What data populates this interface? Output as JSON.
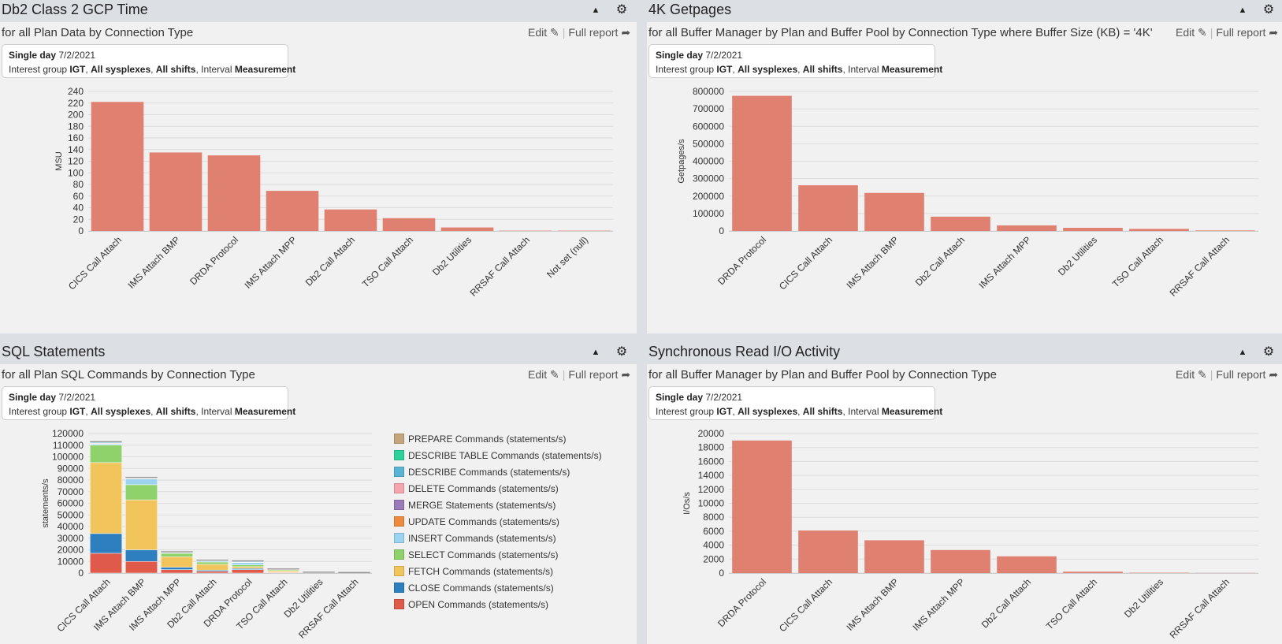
{
  "info": {
    "period_label": "Single day",
    "date": "7/2/2021",
    "ig_label": "Interest group",
    "ig_value": "IGT",
    "sysplex_value": "All sysplexes",
    "shift_value": "All shifts",
    "interval_label": "Interval",
    "interval_value": "Measurement"
  },
  "actions": {
    "edit": "Edit",
    "full_report": "Full report"
  },
  "icons": {
    "collapse": "caret-up-icon",
    "settings": "gear-icon",
    "edit": "edit-icon",
    "full_report": "arrow-circle-right-icon"
  },
  "colors": {
    "bar": "#e08070",
    "header_bg": "#dcdfe4",
    "panel_bg": "#f1f1f1"
  },
  "panels": [
    {
      "title": "Db2 Class 2 GCP Time",
      "subtitle": "for all Plan Data by Connection Type"
    },
    {
      "title": "4K Getpages",
      "subtitle": "for all Buffer Manager by Plan and Buffer Pool by Connection Type where Buffer Size (KB) = '4K'"
    },
    {
      "title": "SQL Statements",
      "subtitle": "for all Plan SQL Commands by Connection Type"
    },
    {
      "title": "Synchronous Read I/O Activity",
      "subtitle": "for all Buffer Manager by Plan and Buffer Pool by Connection Type"
    }
  ],
  "chart_data": [
    {
      "type": "bar",
      "ylabel": "MSU",
      "ylim": [
        0,
        240
      ],
      "yticks": [
        "0",
        "20",
        "40",
        "60",
        "80",
        "100",
        "120",
        "140",
        "160",
        "180",
        "200",
        "220",
        "240"
      ],
      "categories": [
        "CICS Call Attach",
        "IMS Attach BMP",
        "DRDA Protocol",
        "IMS Attach MPP",
        "Db2 Call Attach",
        "TSO Call Attach",
        "Db2 Utilities",
        "RRSAF Call Attach",
        "Not set (null)"
      ],
      "values": [
        222,
        135,
        130,
        69,
        37,
        22,
        6,
        0.5,
        0.5
      ]
    },
    {
      "type": "bar",
      "ylabel": "Getpages/s",
      "ylim": [
        0,
        800000
      ],
      "yticks": [
        "0",
        "100000",
        "200000",
        "300000",
        "400000",
        "500000",
        "600000",
        "700000",
        "800000"
      ],
      "categories": [
        "DRDA Protocol",
        "CICS Call Attach",
        "IMS Attach BMP",
        "Db2 Call Attach",
        "IMS Attach MPP",
        "Db2 Utilities",
        "TSO Call Attach",
        "RRSAF Call Attach"
      ],
      "values": [
        775000,
        262000,
        218000,
        82000,
        32000,
        18000,
        12000,
        3000
      ]
    },
    {
      "type": "bar",
      "stacked": true,
      "ylabel": "statements/s",
      "ylim": [
        0,
        120000
      ],
      "yticks": [
        "0",
        "10000",
        "20000",
        "30000",
        "40000",
        "50000",
        "60000",
        "70000",
        "80000",
        "90000",
        "100000",
        "110000",
        "120000"
      ],
      "legend_position": "right",
      "categories": [
        "CICS Call Attach",
        "IMS Attach BMP",
        "IMS Attach MPP",
        "Db2 Call Attach",
        "DRDA Protocol",
        "TSO Call Attach",
        "Db2 Utilities",
        "RRSAF Call Attach"
      ],
      "series": [
        {
          "name": "OPEN Commands (statements/s)",
          "color": "#e05a4b",
          "values": [
            17000,
            10000,
            3000,
            1500,
            3000,
            500,
            100,
            50
          ]
        },
        {
          "name": "CLOSE Commands (statements/s)",
          "color": "#2e7fbf",
          "values": [
            17000,
            10000,
            2000,
            1000,
            1000,
            300,
            100,
            50
          ]
        },
        {
          "name": "FETCH Commands (statements/s)",
          "color": "#f2c55c",
          "values": [
            61000,
            43000,
            9000,
            5000,
            1500,
            1200,
            200,
            100
          ]
        },
        {
          "name": "SELECT Commands (statements/s)",
          "color": "#8fd16b",
          "values": [
            15000,
            13000,
            3000,
            2000,
            1500,
            800,
            100,
            50
          ]
        },
        {
          "name": "INSERT Commands (statements/s)",
          "color": "#9cd3f0",
          "values": [
            1000,
            5000,
            500,
            800,
            2000,
            300,
            50,
            20
          ]
        },
        {
          "name": "UPDATE Commands (statements/s)",
          "color": "#ed8a3e",
          "values": [
            500,
            400,
            200,
            200,
            300,
            100,
            0,
            0
          ]
        },
        {
          "name": "MERGE Statements (statements/s)",
          "color": "#9b7ab8",
          "values": [
            0,
            0,
            0,
            0,
            0,
            0,
            0,
            0
          ]
        },
        {
          "name": "DELETE Commands (statements/s)",
          "color": "#f5a5b0",
          "values": [
            300,
            200,
            100,
            100,
            200,
            50,
            0,
            0
          ]
        },
        {
          "name": "DESCRIBE Commands (statements/s)",
          "color": "#58b5d6",
          "values": [
            700,
            300,
            200,
            200,
            600,
            50,
            0,
            0
          ]
        },
        {
          "name": "DESCRIBE TABLE Commands (statements/s)",
          "color": "#2dd19b",
          "values": [
            0,
            0,
            0,
            0,
            0,
            0,
            0,
            0
          ]
        },
        {
          "name": "PREPARE Commands (statements/s)",
          "color": "#c4a57d",
          "values": [
            300,
            200,
            100,
            100,
            200,
            50,
            0,
            0
          ]
        }
      ]
    },
    {
      "type": "bar",
      "ylabel": "I/Os/s",
      "ylim": [
        0,
        20000
      ],
      "yticks": [
        "0",
        "2000",
        "4000",
        "6000",
        "8000",
        "10000",
        "12000",
        "14000",
        "16000",
        "18000",
        "20000"
      ],
      "categories": [
        "DRDA Protocol",
        "CICS Call Attach",
        "IMS Attach BMP",
        "IMS Attach MPP",
        "Db2 Call Attach",
        "TSO Call Attach",
        "Db2 Utilities",
        "RRSAF Call Attach"
      ],
      "values": [
        19000,
        6100,
        4700,
        3300,
        2400,
        200,
        50,
        20
      ]
    }
  ]
}
